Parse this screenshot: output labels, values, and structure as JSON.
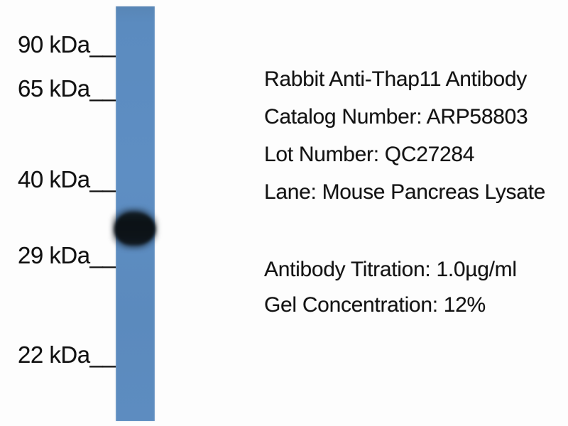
{
  "figure": {
    "kind": "western-blot",
    "colors": {
      "background": "#fdfdfd",
      "lane": "#5b8bbf",
      "band": "#0d1318",
      "text": "#111111"
    },
    "lane": {
      "band_between_markers": "29 kDa and 40 kDa"
    },
    "markers": [
      {
        "label": "90 kDa__"
      },
      {
        "label": "65 kDa__"
      },
      {
        "label": "40 kDa__"
      },
      {
        "label": "29 kDa__"
      },
      {
        "label": "22 kDa__"
      }
    ],
    "annotations": {
      "title": "Rabbit Anti-Thap11 Antibody",
      "catalog": "Catalog Number: ARP58803",
      "lot": "Lot Number: QC27284",
      "lane_description": "Lane: Mouse Pancreas Lysate",
      "titration": "Antibody Titration: 1.0µg/ml",
      "gel_concentration": "Gel Concentration: 12%"
    }
  }
}
